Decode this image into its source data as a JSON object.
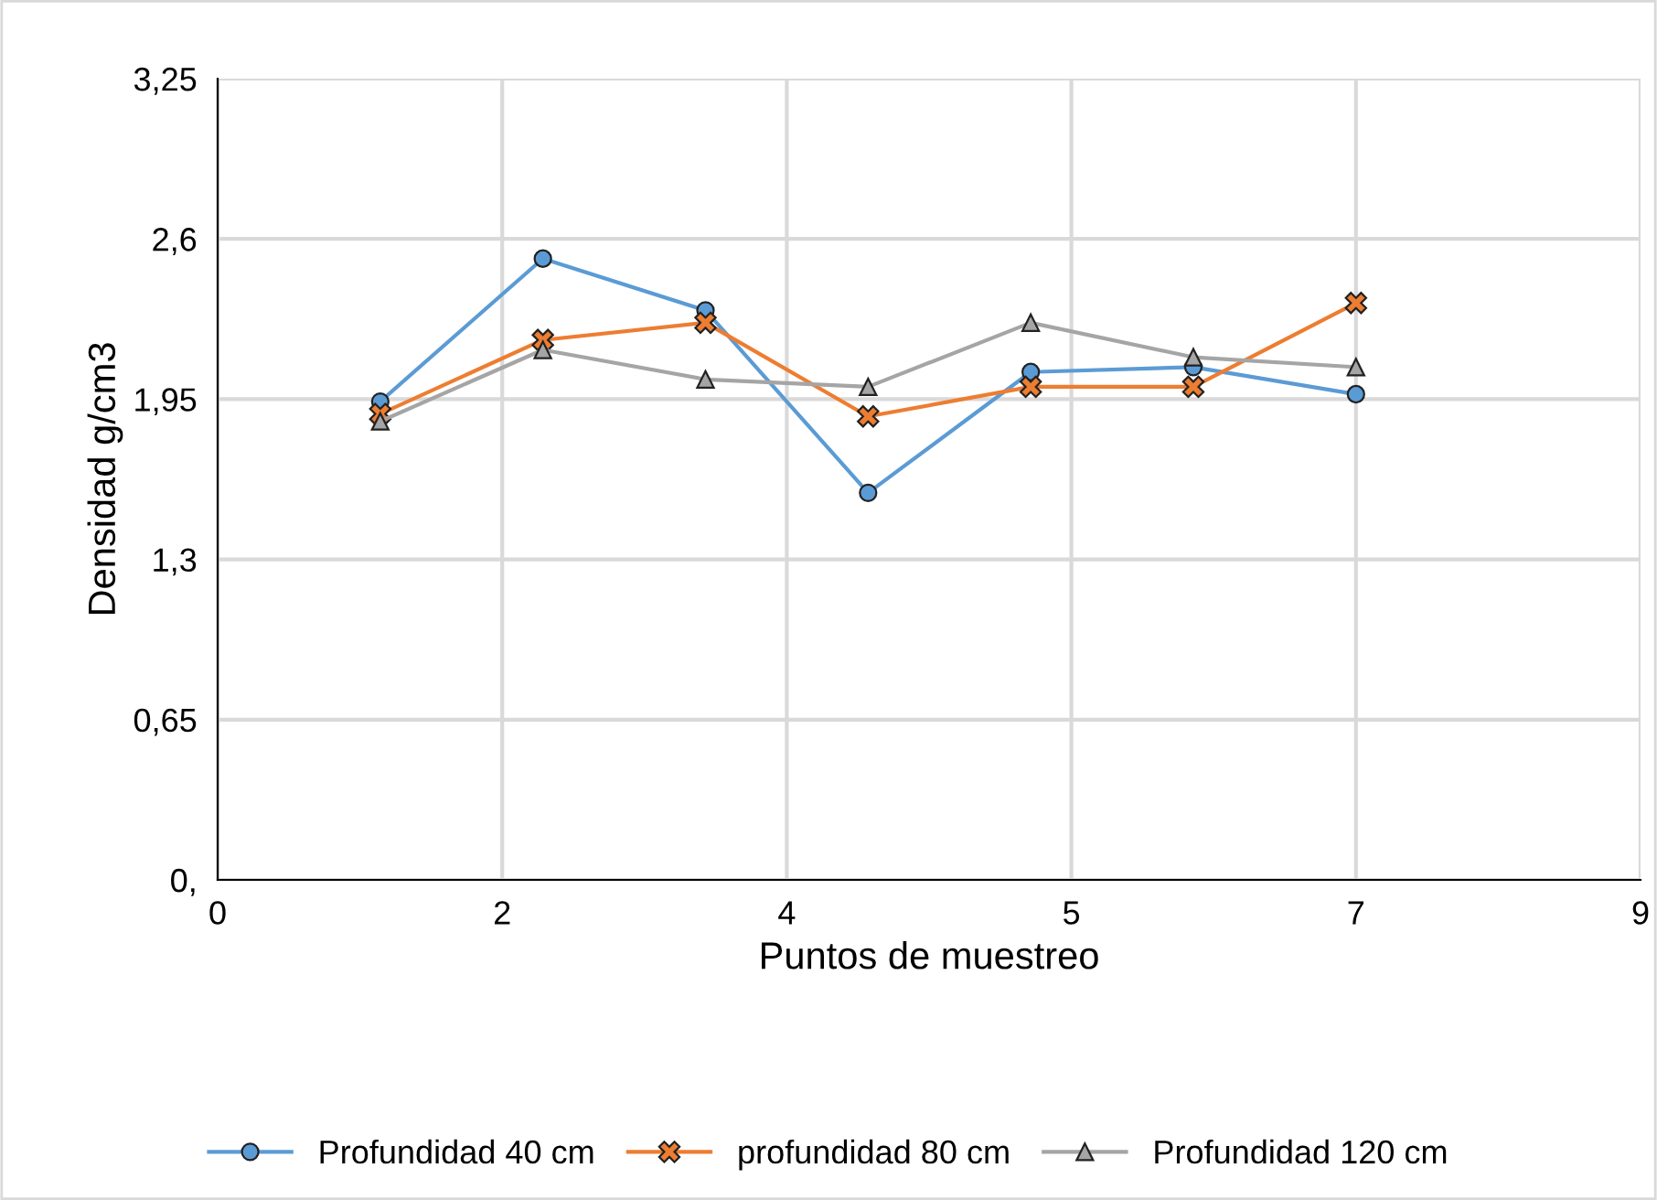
{
  "chart_data": {
    "type": "line",
    "xlabel": "Puntos de muestreo",
    "ylabel": "Densidad g/cm3",
    "x": [
      1,
      2,
      3,
      4,
      5,
      6,
      7
    ],
    "series": [
      {
        "name": "Profundidad 40 cm",
        "color": "#5b9bd5",
        "marker": "circle",
        "values": [
          1.94,
          2.52,
          2.31,
          1.57,
          2.06,
          2.08,
          1.97
        ]
      },
      {
        "name": "profundidad 80 cm",
        "color": "#ed7d31",
        "marker": "cross",
        "values": [
          1.89,
          2.19,
          2.26,
          1.88,
          2.0,
          2.0,
          2.34
        ]
      },
      {
        "name": "Profundidad 120 cm",
        "color": "#a5a5a5",
        "marker": "triangle",
        "values": [
          1.86,
          2.15,
          2.03,
          2.0,
          2.26,
          2.12,
          2.08
        ]
      }
    ],
    "xlim": [
      0,
      8.75
    ],
    "xticks": [
      0,
      {
        "value": 1.75,
        "label": "2"
      },
      {
        "value": 3.5,
        "label": "4"
      },
      {
        "value": 5.25,
        "label": "5"
      },
      7,
      {
        "value": 8.75,
        "label": "9"
      }
    ],
    "ylim": [
      0,
      3.25
    ],
    "yticks": [
      {
        "value": 0,
        "label": "0,"
      },
      {
        "value": 0.65,
        "label": "0,65"
      },
      {
        "value": 1.3,
        "label": "1,3"
      },
      {
        "value": 1.95,
        "label": "1,95"
      },
      {
        "value": 2.6,
        "label": "2,6"
      },
      {
        "value": 3.25,
        "label": "3,25"
      }
    ],
    "grid": true,
    "legend": "bottom",
    "line_style": "solid"
  }
}
